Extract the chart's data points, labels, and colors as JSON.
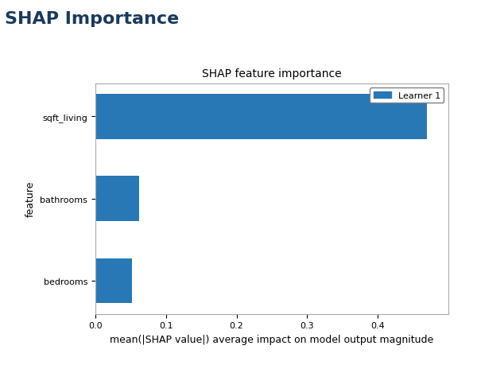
{
  "title": "SHAP Importance",
  "chart_title": "SHAP feature importance",
  "features": [
    "sqft_living",
    "bathrooms",
    "bedrooms"
  ],
  "values": [
    0.47,
    0.062,
    0.052
  ],
  "bar_color": "#2878b5",
  "xlabel": "mean(|SHAP value|) average impact on model output magnitude",
  "ylabel": "feature",
  "xlim": [
    0,
    0.5
  ],
  "xticks": [
    0.0,
    0.1,
    0.2,
    0.3,
    0.4
  ],
  "legend_label": "Learner 1",
  "title_fontsize": 16,
  "chart_title_fontsize": 10,
  "tick_fontsize": 8,
  "label_fontsize": 9,
  "title_color": "#1a3a5c",
  "title_fontweight": "bold",
  "bar_height": 0.55
}
